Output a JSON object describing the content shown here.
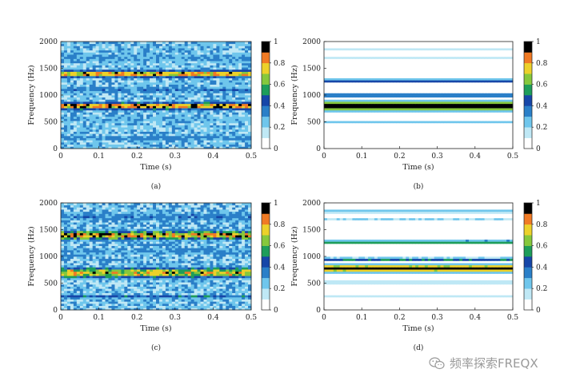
{
  "chart_data": [
    {
      "type": "heatmap",
      "panel_label": "(a)",
      "xlabel": "Time (s)",
      "ylabel": "Frequency (Hz)",
      "xlim": [
        0,
        0.5
      ],
      "ylim": [
        0,
        2000
      ],
      "xticks": [
        0,
        0.1,
        0.2,
        0.3,
        0.4,
        0.5
      ],
      "yticks": [
        0,
        500,
        1000,
        1500,
        2000
      ],
      "colorbar": {
        "range": [
          0,
          1
        ],
        "ticks": [
          0,
          0.2,
          0.4,
          0.6,
          0.8,
          1
        ]
      },
      "bands": [
        {
          "freq": 1400,
          "width": 70,
          "level": 0.85
        },
        {
          "freq": 800,
          "width": 70,
          "level": 0.9
        },
        {
          "freq": 1100,
          "width": 90,
          "level": 0.35
        },
        {
          "freq": 1700,
          "width": 120,
          "level": 0.3
        },
        {
          "freq": 550,
          "width": 110,
          "level": 0.25
        },
        {
          "freq": 200,
          "width": 35,
          "level": 0.45
        }
      ],
      "background_level": 0.25,
      "noise": 0.22
    },
    {
      "type": "heatmap",
      "panel_label": "(b)",
      "xlabel": "Time (s)",
      "ylabel": "Frequency (Hz)",
      "xlim": [
        0,
        0.5
      ],
      "ylim": [
        0,
        2000
      ],
      "xticks": [
        0,
        0.1,
        0.2,
        0.3,
        0.4,
        0.5
      ],
      "yticks": [
        0,
        500,
        1000,
        1500,
        2000
      ],
      "colorbar": {
        "range": [
          0,
          1
        ],
        "ticks": [
          0,
          0.2,
          0.4,
          0.6,
          0.8,
          1
        ]
      },
      "bands": [
        {
          "freq": 800,
          "width": 85,
          "level": 1.0
        },
        {
          "freq": 1000,
          "width": 28,
          "level": 0.6
        },
        {
          "freq": 1270,
          "width": 30,
          "level": 0.55
        },
        {
          "freq": 500,
          "width": 25,
          "level": 0.25
        },
        {
          "freq": 1850,
          "width": 25,
          "level": 0.2
        },
        {
          "freq": 1700,
          "width": 25,
          "level": 0.15
        }
      ],
      "background_level": 0.0,
      "noise": 0.0
    },
    {
      "type": "heatmap",
      "panel_label": "(c)",
      "xlabel": "Time (s)",
      "ylabel": "Frequency (Hz)",
      "xlim": [
        0,
        0.5
      ],
      "ylim": [
        0,
        2000
      ],
      "xticks": [
        0,
        0.1,
        0.2,
        0.3,
        0.4,
        0.5
      ],
      "yticks": [
        0,
        500,
        1000,
        1500,
        2000
      ],
      "colorbar": {
        "range": [
          0,
          1
        ],
        "ticks": [
          0,
          0.2,
          0.4,
          0.6,
          0.8,
          1
        ]
      },
      "bands": [
        {
          "freq": 1400,
          "width": 90,
          "level": 0.85
        },
        {
          "freq": 700,
          "width": 110,
          "level": 0.75
        },
        {
          "freq": 1100,
          "width": 90,
          "level": 0.3
        },
        {
          "freq": 1750,
          "width": 110,
          "level": 0.35
        },
        {
          "freq": 250,
          "width": 40,
          "level": 0.45
        }
      ],
      "background_level": 0.25,
      "noise": 0.3
    },
    {
      "type": "heatmap",
      "panel_label": "(d)",
      "xlabel": "Time (s)",
      "ylabel": "Frequency (Hz)",
      "xlim": [
        0,
        0.5
      ],
      "ylim": [
        0,
        2000
      ],
      "xticks": [
        0,
        0.1,
        0.2,
        0.3,
        0.4,
        0.5
      ],
      "yticks": [
        0,
        500,
        1000,
        1500,
        2000
      ],
      "colorbar": {
        "range": [
          0,
          1
        ],
        "ticks": [
          0,
          0.2,
          0.4,
          0.6,
          0.8,
          1
        ]
      },
      "bands": [
        {
          "freq": 780,
          "width": 70,
          "level": 1.0
        },
        {
          "freq": 950,
          "width": 30,
          "level": 0.55
        },
        {
          "freq": 1270,
          "width": 35,
          "level": 0.6
        },
        {
          "freq": 520,
          "width": 30,
          "level": 0.25
        },
        {
          "freq": 1850,
          "width": 30,
          "level": 0.3
        },
        {
          "freq": 1700,
          "width": 25,
          "level": 0.2
        },
        {
          "freq": 250,
          "width": 20,
          "level": 0.15
        }
      ],
      "background_level": 0.0,
      "noise": 0.06
    }
  ],
  "watermark": {
    "text": "频率探索FREQX",
    "icon": "wechat-icon"
  }
}
